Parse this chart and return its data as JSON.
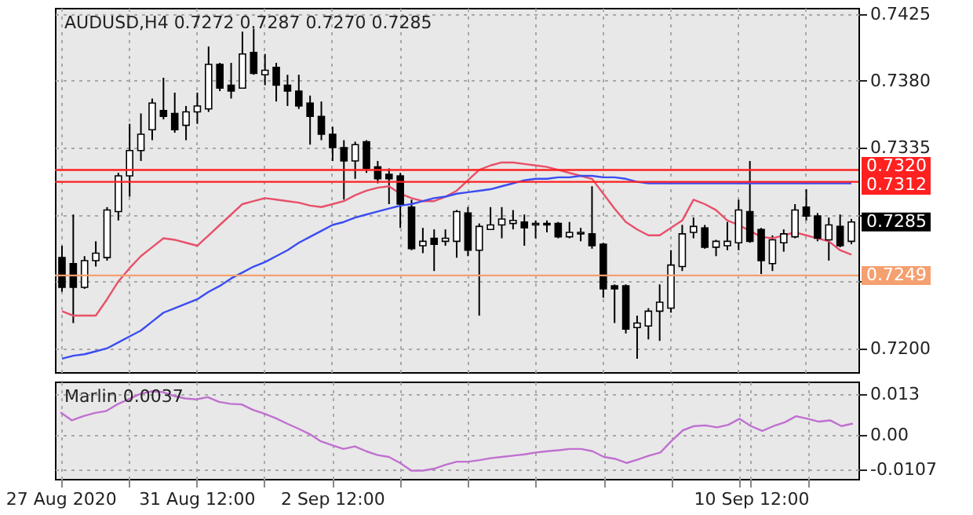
{
  "chart_data": [
    {
      "type": "candlestick",
      "title": "AUDUSD,H4  0.7272 0.7287 0.7270 0.7285",
      "categories": [
        null,
        null,
        null,
        null,
        null,
        null,
        null,
        null,
        null,
        null,
        null,
        null,
        null,
        null,
        null,
        null,
        null,
        null,
        null,
        null,
        null,
        null,
        null,
        null,
        null,
        null,
        null,
        null,
        null,
        null,
        null,
        null,
        null,
        null,
        null,
        null,
        null,
        null,
        null,
        null,
        null,
        null,
        null,
        null,
        null,
        null,
        null,
        null,
        null,
        null,
        null,
        null,
        null,
        null,
        null,
        null,
        null,
        null,
        null,
        null,
        null,
        null,
        null,
        null,
        null,
        null,
        null,
        null,
        null,
        null,
        null
      ],
      "ohlc": [
        [
          0.7261,
          0.7269,
          0.7238,
          0.7241
        ],
        [
          0.7257,
          0.729,
          0.7217,
          0.7241
        ],
        [
          0.7241,
          0.7262,
          0.724,
          0.7259
        ],
        [
          0.7259,
          0.7272,
          0.7255,
          0.7264
        ],
        [
          0.7261,
          0.7295,
          0.7259,
          0.7293
        ],
        [
          0.7292,
          0.7318,
          0.7286,
          0.7316
        ],
        [
          0.7316,
          0.7351,
          0.7302,
          0.7333
        ],
        [
          0.7333,
          0.7358,
          0.7326,
          0.7344
        ],
        [
          0.7347,
          0.7368,
          0.734,
          0.7365
        ],
        [
          0.736,
          0.7382,
          0.7354,
          0.7356
        ],
        [
          0.7358,
          0.7372,
          0.7345,
          0.7347
        ],
        [
          0.735,
          0.7363,
          0.734,
          0.7359
        ],
        [
          0.7359,
          0.7372,
          0.7351,
          0.7363
        ],
        [
          0.7361,
          0.7403,
          0.7359,
          0.7391
        ],
        [
          0.7391,
          0.7392,
          0.7373,
          0.7375
        ],
        [
          0.7377,
          0.7392,
          0.7368,
          0.7373
        ],
        [
          0.7375,
          0.7413,
          0.7375,
          0.7398
        ],
        [
          0.7399,
          0.7415,
          0.7384,
          0.7385
        ],
        [
          0.7384,
          0.7398,
          0.7377,
          0.7387
        ],
        [
          0.7389,
          0.7392,
          0.7366,
          0.7377
        ],
        [
          0.7377,
          0.7384,
          0.7363,
          0.7373
        ],
        [
          0.7373,
          0.7384,
          0.7361,
          0.7363
        ],
        [
          0.7365,
          0.737,
          0.7337,
          0.7356
        ],
        [
          0.7356,
          0.7366,
          0.734,
          0.7344
        ],
        [
          0.7344,
          0.7349,
          0.7326,
          0.7335
        ],
        [
          0.7335,
          0.734,
          0.73,
          0.7326
        ],
        [
          0.7326,
          0.7339,
          0.7314,
          0.7337
        ],
        [
          0.7339,
          0.734,
          0.7318,
          0.7321
        ],
        [
          0.7322,
          0.7326,
          0.7311,
          0.7314
        ],
        [
          0.7317,
          0.7321,
          0.7297,
          0.7314
        ],
        [
          0.7316,
          0.7318,
          0.7281,
          0.7297
        ],
        [
          0.7295,
          0.73,
          0.7266,
          0.7267
        ],
        [
          0.7269,
          0.7281,
          0.7264,
          0.7272
        ],
        [
          0.7274,
          0.728,
          0.7252,
          0.727
        ],
        [
          0.7272,
          0.728,
          0.7269,
          0.7274
        ],
        [
          0.7272,
          0.7293,
          0.7261,
          0.7292
        ],
        [
          0.7291,
          0.7295,
          0.7262,
          0.7266
        ],
        [
          0.7266,
          0.7284,
          0.7222,
          0.7282
        ],
        [
          0.728,
          0.7295,
          0.728,
          0.7283
        ],
        [
          0.7283,
          0.7295,
          0.7274,
          0.7287
        ],
        [
          0.7284,
          0.7293,
          0.728,
          0.7286
        ],
        [
          0.7285,
          0.729,
          0.7269,
          0.7281
        ],
        [
          0.7283,
          0.7286,
          0.7274,
          0.7284
        ],
        [
          0.7284,
          0.7286,
          0.7278,
          0.7283
        ],
        [
          0.7284,
          0.7285,
          0.7274,
          0.7275
        ],
        [
          0.7275,
          0.7285,
          0.7274,
          0.7278
        ],
        [
          0.7277,
          0.7281,
          0.7272,
          0.7278
        ],
        [
          0.7277,
          0.7309,
          0.7267,
          0.7269
        ],
        [
          0.727,
          0.7271,
          0.7234,
          0.724
        ],
        [
          0.7242,
          0.7243,
          0.7217,
          0.724
        ],
        [
          0.7242,
          0.7243,
          0.721,
          0.7213
        ],
        [
          0.7214,
          0.7222,
          0.7193,
          0.7217
        ],
        [
          0.7215,
          0.7227,
          0.7206,
          0.7225
        ],
        [
          0.7225,
          0.7243,
          0.7205,
          0.7231
        ],
        [
          0.7227,
          0.7266,
          0.7224,
          0.7256
        ],
        [
          0.7255,
          0.7283,
          0.7252,
          0.7277
        ],
        [
          0.7278,
          0.7288,
          0.7274,
          0.7282
        ],
        [
          0.7281,
          0.7283,
          0.7267,
          0.7268
        ],
        [
          0.7268,
          0.7273,
          0.7262,
          0.7272
        ],
        [
          0.7269,
          0.7285,
          0.7266,
          0.7272
        ],
        [
          0.7271,
          0.73,
          0.7266,
          0.7293
        ],
        [
          0.7292,
          0.7326,
          0.7271,
          0.7272
        ],
        [
          0.728,
          0.7281,
          0.725,
          0.7259
        ],
        [
          0.7257,
          0.7276,
          0.7252,
          0.7273
        ],
        [
          0.7271,
          0.728,
          0.7265,
          0.7277
        ],
        [
          0.7275,
          0.7297,
          0.7274,
          0.7293
        ],
        [
          0.7295,
          0.7307,
          0.7286,
          0.7289
        ],
        [
          0.7289,
          0.7291,
          0.7272,
          0.7274
        ],
        [
          0.7273,
          0.7288,
          0.7259,
          0.7283
        ],
        [
          0.7282,
          0.729,
          0.7268,
          0.7269
        ],
        [
          0.7272,
          0.7287,
          0.727,
          0.7285
        ]
      ],
      "series": [
        {
          "type": "line",
          "color": "#e8506a",
          "values": [
            0.7225,
            0.7222,
            0.7222,
            0.7222,
            0.7233,
            0.7245,
            0.7254,
            0.7262,
            0.7268,
            0.7274,
            0.7273,
            0.7271,
            0.7269,
            0.7276,
            0.7283,
            0.729,
            0.7297,
            0.7299,
            0.7301,
            0.73,
            0.7299,
            0.7298,
            0.7296,
            0.7295,
            0.7297,
            0.7299,
            0.7303,
            0.7306,
            0.7308,
            0.7309,
            0.7304,
            0.7301,
            0.7299,
            0.7299,
            0.7302,
            0.7306,
            0.7313,
            0.732,
            0.7323,
            0.7325,
            0.7325,
            0.7324,
            0.7323,
            0.7322,
            0.732,
            0.7318,
            0.7316,
            0.7314,
            0.7304,
            0.7294,
            0.7285,
            0.728,
            0.7276,
            0.7276,
            0.7281,
            0.7286,
            0.73,
            0.7297,
            0.7293,
            0.7286,
            0.7283,
            0.7279,
            0.7275,
            0.7274,
            0.7276,
            0.7278,
            0.7276,
            0.7274,
            0.7272,
            0.7266,
            0.7263
          ]
        },
        {
          "type": "line",
          "color": "#3b4cf0",
          "values": [
            0.7193,
            0.7195,
            0.7196,
            0.7198,
            0.72,
            0.7204,
            0.7208,
            0.7212,
            0.7218,
            0.7224,
            0.7227,
            0.723,
            0.7233,
            0.7238,
            0.7242,
            0.7247,
            0.7251,
            0.7255,
            0.7258,
            0.7262,
            0.7266,
            0.7271,
            0.7275,
            0.7279,
            0.7283,
            0.7285,
            0.7288,
            0.729,
            0.7292,
            0.7294,
            0.7296,
            0.7297,
            0.7299,
            0.7301,
            0.7302,
            0.7304,
            0.7305,
            0.7306,
            0.7307,
            0.7309,
            0.7311,
            0.7313,
            0.7314,
            0.7314,
            0.7315,
            0.7315,
            0.7316,
            0.7316,
            0.7315,
            0.7315,
            0.7314,
            0.7312,
            0.7311,
            0.7311,
            0.7311,
            0.7311,
            0.7311,
            0.7311,
            0.7311,
            0.7311,
            0.7311,
            0.7311,
            0.7311,
            0.7311,
            0.7311,
            0.7311,
            0.7311,
            0.7311,
            0.7311,
            0.7311,
            0.7311
          ]
        }
      ],
      "ylim": [
        0.7184,
        0.7429
      ],
      "yticks": [
        0.7425,
        {
          "value": 0.738,
          "label": "0.7380"
        },
        0.7335,
        {
          "value": 0.729,
          "label": null
        },
        {
          "value": 0.7245,
          "label": null
        },
        {
          "value": 0.72,
          "label": "0.7200"
        }
      ],
      "ref_lines": [
        {
          "axis": "y",
          "value": 0.732,
          "label": "0.7320",
          "color": "#ff2020"
        },
        {
          "axis": "y",
          "value": 0.7312,
          "label": "0.7312",
          "color": "#ff2020"
        },
        {
          "axis": "y",
          "value": 0.7249,
          "label": "0.7249",
          "color": "#f5a070"
        }
      ],
      "annotations": [
        "0.7285"
      ],
      "grid": true,
      "tick_labels": "y"
    },
    {
      "type": "line",
      "title": "Marlin 0.0037",
      "categories": [
        "27 Aug 2020",
        null,
        null,
        null,
        null,
        null,
        null,
        null,
        null,
        null,
        null,
        null,
        "31 Aug 12:00",
        null,
        null,
        null,
        null,
        null,
        null,
        null,
        null,
        null,
        null,
        null,
        "2 Sep 12:00",
        null,
        null,
        null,
        null,
        null,
        null,
        null,
        null,
        null,
        null,
        null,
        null,
        null,
        null,
        null,
        null,
        null,
        null,
        null,
        null,
        null,
        null,
        null,
        null,
        null,
        null,
        null,
        null,
        null,
        null,
        null,
        null,
        null,
        null,
        null,
        null,
        "10 Sep 12:00",
        null,
        null,
        null,
        null,
        null,
        null,
        null,
        null,
        null
      ],
      "series": [
        {
          "color": "#c070d0",
          "values": [
            0.0072,
            0.0047,
            0.006,
            0.007,
            0.0076,
            0.0097,
            0.0113,
            0.013,
            0.0138,
            0.0136,
            0.0124,
            0.0116,
            0.0113,
            0.012,
            0.0105,
            0.0099,
            0.0097,
            0.008,
            0.0068,
            0.0054,
            0.0037,
            0.0021,
            0.0004,
            -0.0019,
            -0.0031,
            -0.0043,
            -0.0035,
            -0.005,
            -0.0062,
            -0.0068,
            -0.0087,
            -0.0111,
            -0.0111,
            -0.0105,
            -0.0093,
            -0.0083,
            -0.0083,
            -0.0078,
            -0.0072,
            -0.0068,
            -0.0064,
            -0.006,
            -0.0054,
            -0.005,
            -0.0047,
            -0.0043,
            -0.0043,
            -0.005,
            -0.0068,
            -0.0074,
            -0.0087,
            -0.0076,
            -0.0064,
            -0.0054,
            -0.0017,
            0.0016,
            0.0029,
            0.0031,
            0.0025,
            0.0033,
            0.0052,
            0.0029,
            0.0014,
            0.0029,
            0.0041,
            0.006,
            0.0052,
            0.0043,
            0.0047,
            0.0029,
            0.0037
          ]
        }
      ],
      "ylim": [
        -0.0137,
        0.0169
      ],
      "yticks": [
        0.013,
        {
          "value": 0,
          "label": "0.00"
        },
        -0.0107
      ],
      "grid": true
    }
  ]
}
